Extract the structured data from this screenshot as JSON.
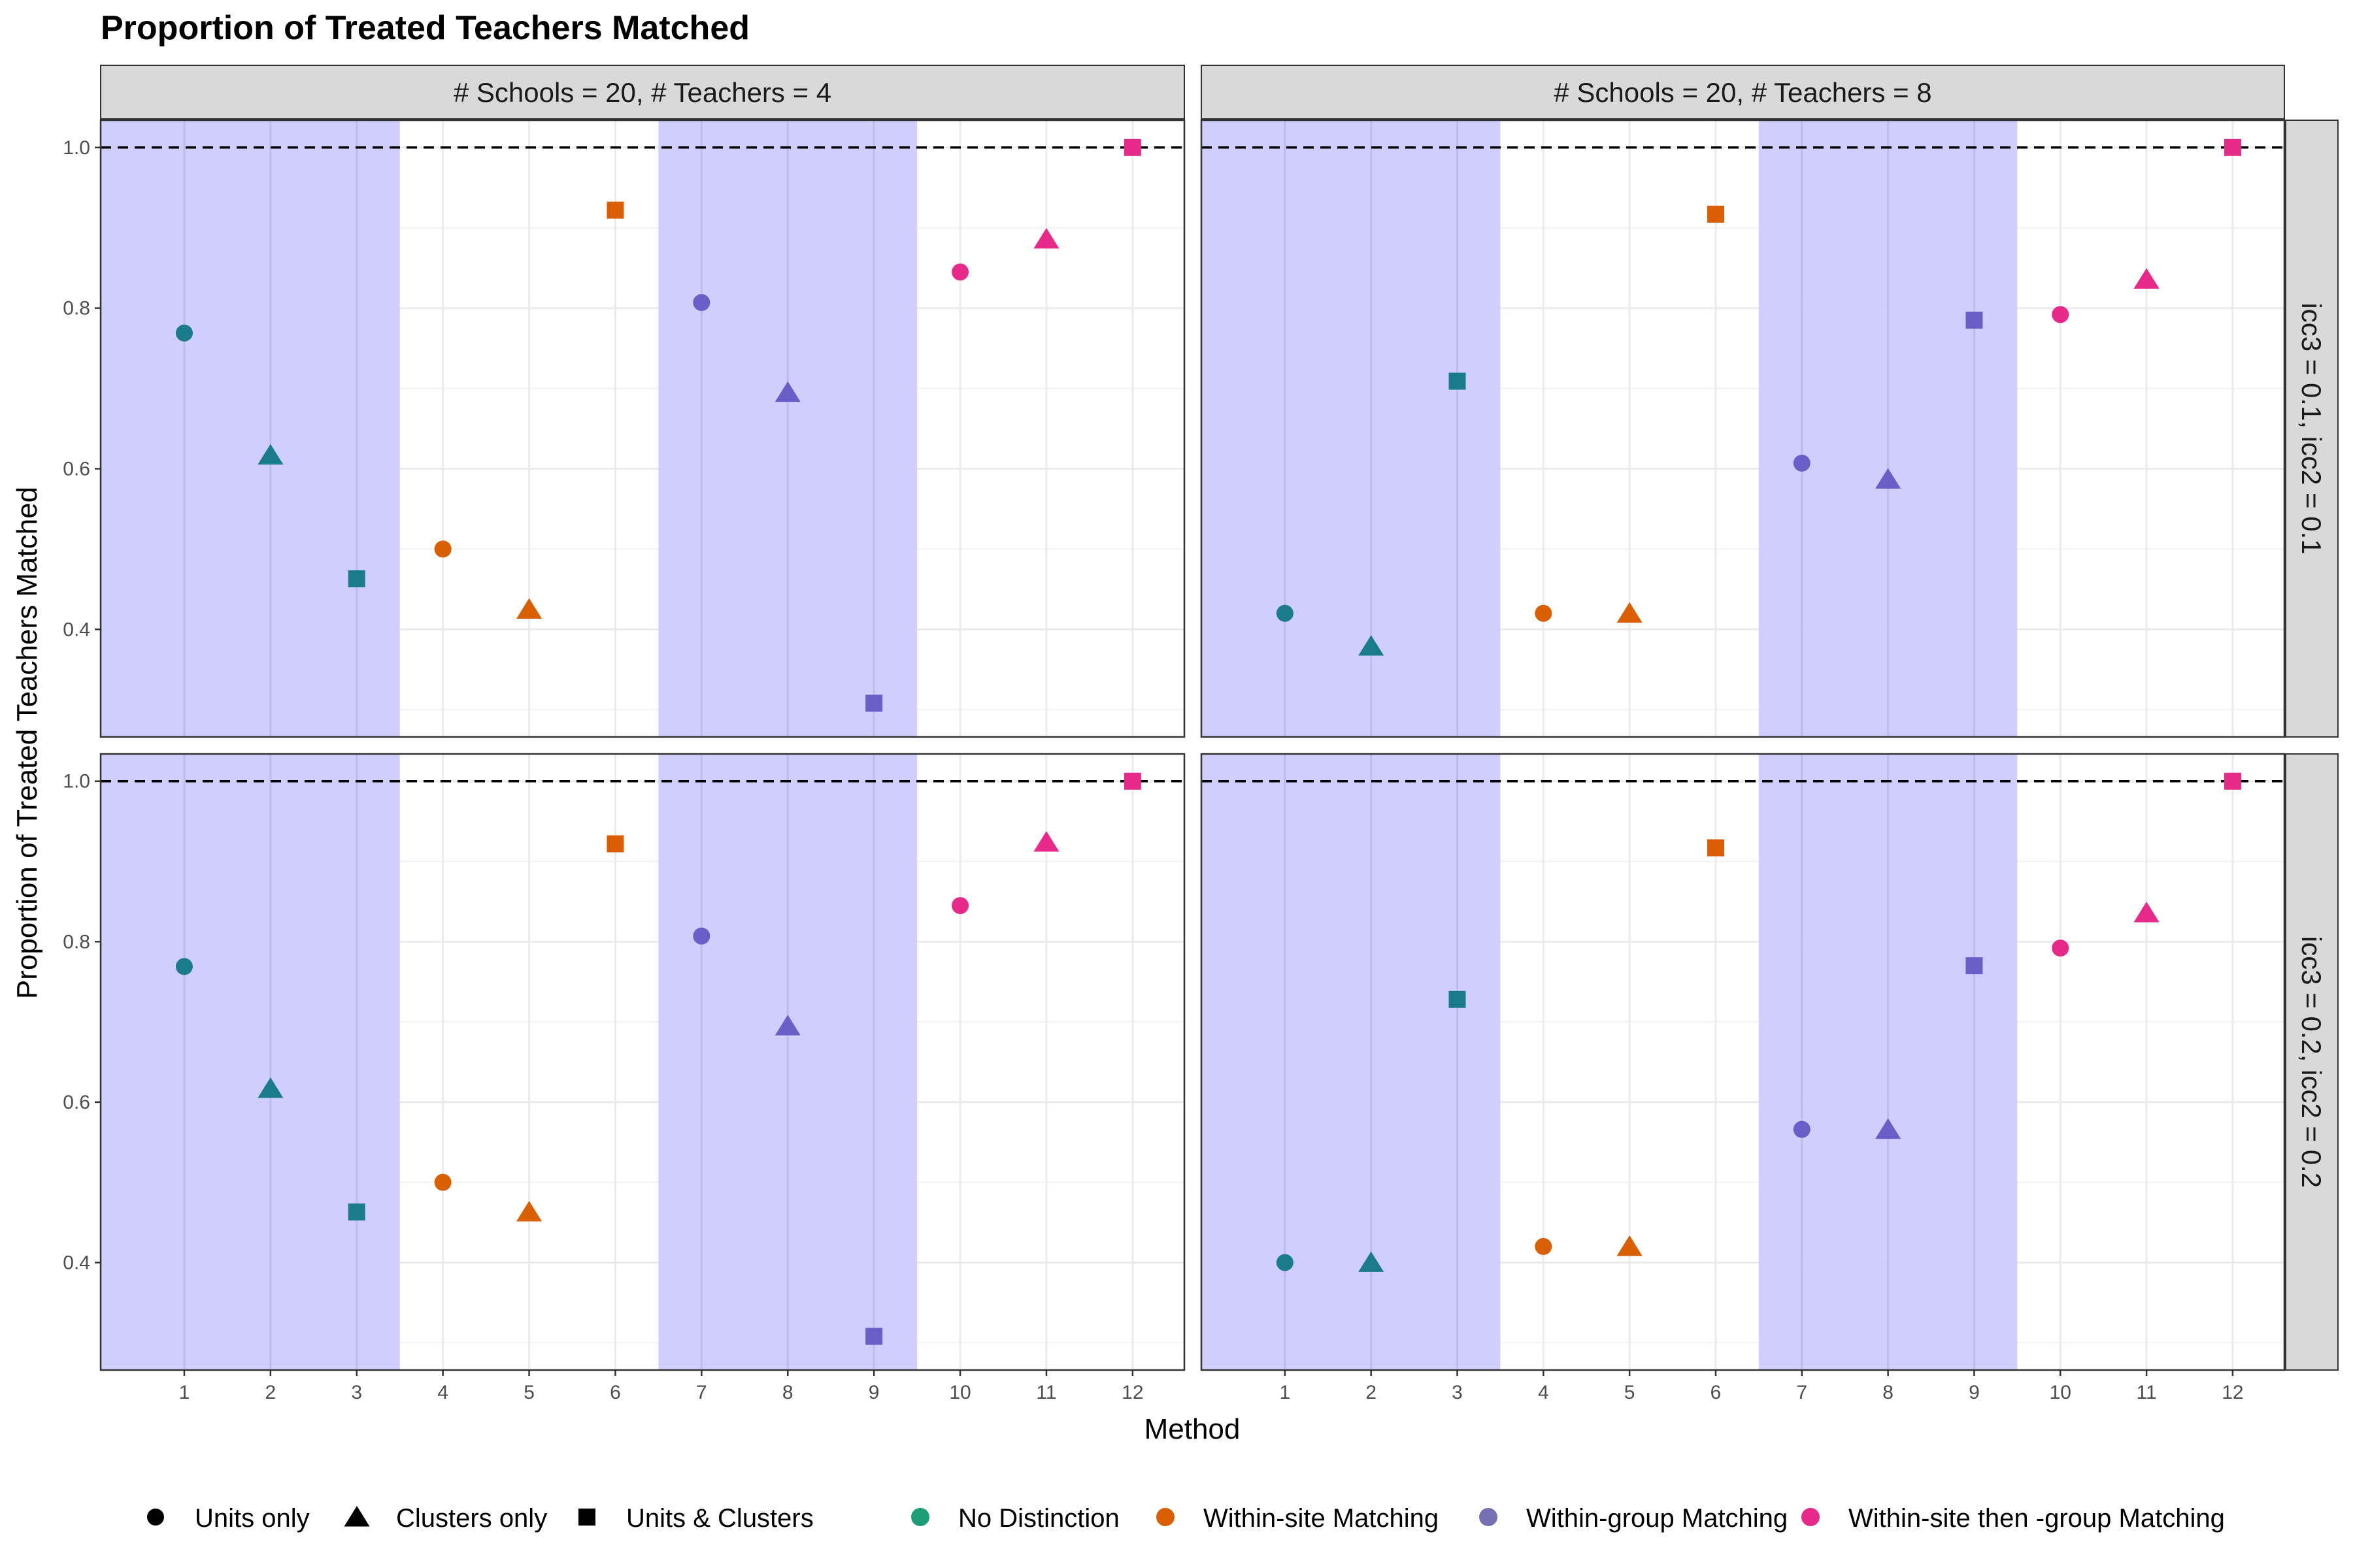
{
  "chart_data": {
    "type": "scatter",
    "title": "Proportion of Treated Teachers Matched",
    "xlabel": "Method",
    "ylabel": "Proportion of Treated Teachers Matched",
    "x": [
      1,
      2,
      3,
      4,
      5,
      6,
      7,
      8,
      9,
      10,
      11,
      12
    ],
    "x_ticks": [
      "1",
      "2",
      "3",
      "4",
      "5",
      "6",
      "7",
      "8",
      "9",
      "10",
      "11",
      "12"
    ],
    "y_ticks": [
      "0.4",
      "0.6",
      "0.8",
      "1.0"
    ],
    "xlim": [
      0.03,
      12.6
    ],
    "ylim": [
      0.266,
      1.034
    ],
    "reference_line": {
      "y": 1.0,
      "style": "dashed"
    },
    "shaded_x_ranges": [
      [
        0.03,
        3.5
      ],
      [
        6.5,
        9.5
      ]
    ],
    "shade_color": "#cccbfd",
    "grid": true,
    "col_facets": [
      "# Schools = 20, # Teachers = 4",
      "# Schools = 20, # Teachers = 8"
    ],
    "row_facets": [
      "icc3 = 0.1, icc2  = 0.1",
      "icc3 = 0.2, icc2  = 0.2"
    ],
    "point_shapes": [
      "circle",
      "triangle",
      "square",
      "circle",
      "triangle",
      "square",
      "circle",
      "triangle",
      "square",
      "circle",
      "triangle",
      "square"
    ],
    "point_groups": [
      "No Distinction",
      "No Distinction",
      "No Distinction",
      "Within-site Matching",
      "Within-site Matching",
      "Within-site Matching",
      "Within-group Matching",
      "Within-group Matching",
      "Within-group Matching",
      "Within-site then -group Matching",
      "Within-site then -group Matching",
      "Within-site then -group Matching"
    ],
    "panels": [
      {
        "row": 0,
        "col": 0,
        "values": [
          0.769,
          0.617,
          0.463,
          0.5,
          0.425,
          0.922,
          0.807,
          0.695,
          0.308,
          0.845,
          0.886,
          1.0
        ]
      },
      {
        "row": 0,
        "col": 1,
        "values": [
          0.42,
          0.379,
          0.709,
          0.42,
          0.42,
          0.917,
          0.607,
          0.587,
          0.785,
          0.792,
          0.836,
          1.0
        ]
      },
      {
        "row": 1,
        "col": 0,
        "values": [
          0.769,
          0.617,
          0.463,
          0.5,
          0.463,
          0.922,
          0.807,
          0.695,
          0.308,
          0.845,
          0.924,
          1.0
        ]
      },
      {
        "row": 1,
        "col": 1,
        "values": [
          0.4,
          0.4,
          0.728,
          0.42,
          0.42,
          0.917,
          0.566,
          0.566,
          0.77,
          0.792,
          0.836,
          1.0
        ]
      }
    ],
    "legend": {
      "placement": "bottom",
      "shapes": [
        {
          "label": "Units only",
          "shape": "circle"
        },
        {
          "label": "Clusters only",
          "shape": "triangle"
        },
        {
          "label": "Units & Clusters",
          "shape": "square"
        }
      ],
      "colors_legend": [
        {
          "label": "No Distinction",
          "color": "#1b9e77"
        },
        {
          "label": "Within-site Matching",
          "color": "#d95f02"
        },
        {
          "label": "Within-group Matching",
          "color": "#7570b3"
        },
        {
          "label": "Within-site then -group Matching",
          "color": "#e7298a"
        }
      ]
    },
    "point_colors": {
      "No Distinction": "#1a7b8c",
      "Within-site Matching": "#d95f02",
      "Within-group Matching": "#6a5fc8",
      "Within-site then -group Matching": "#e7298a"
    }
  }
}
